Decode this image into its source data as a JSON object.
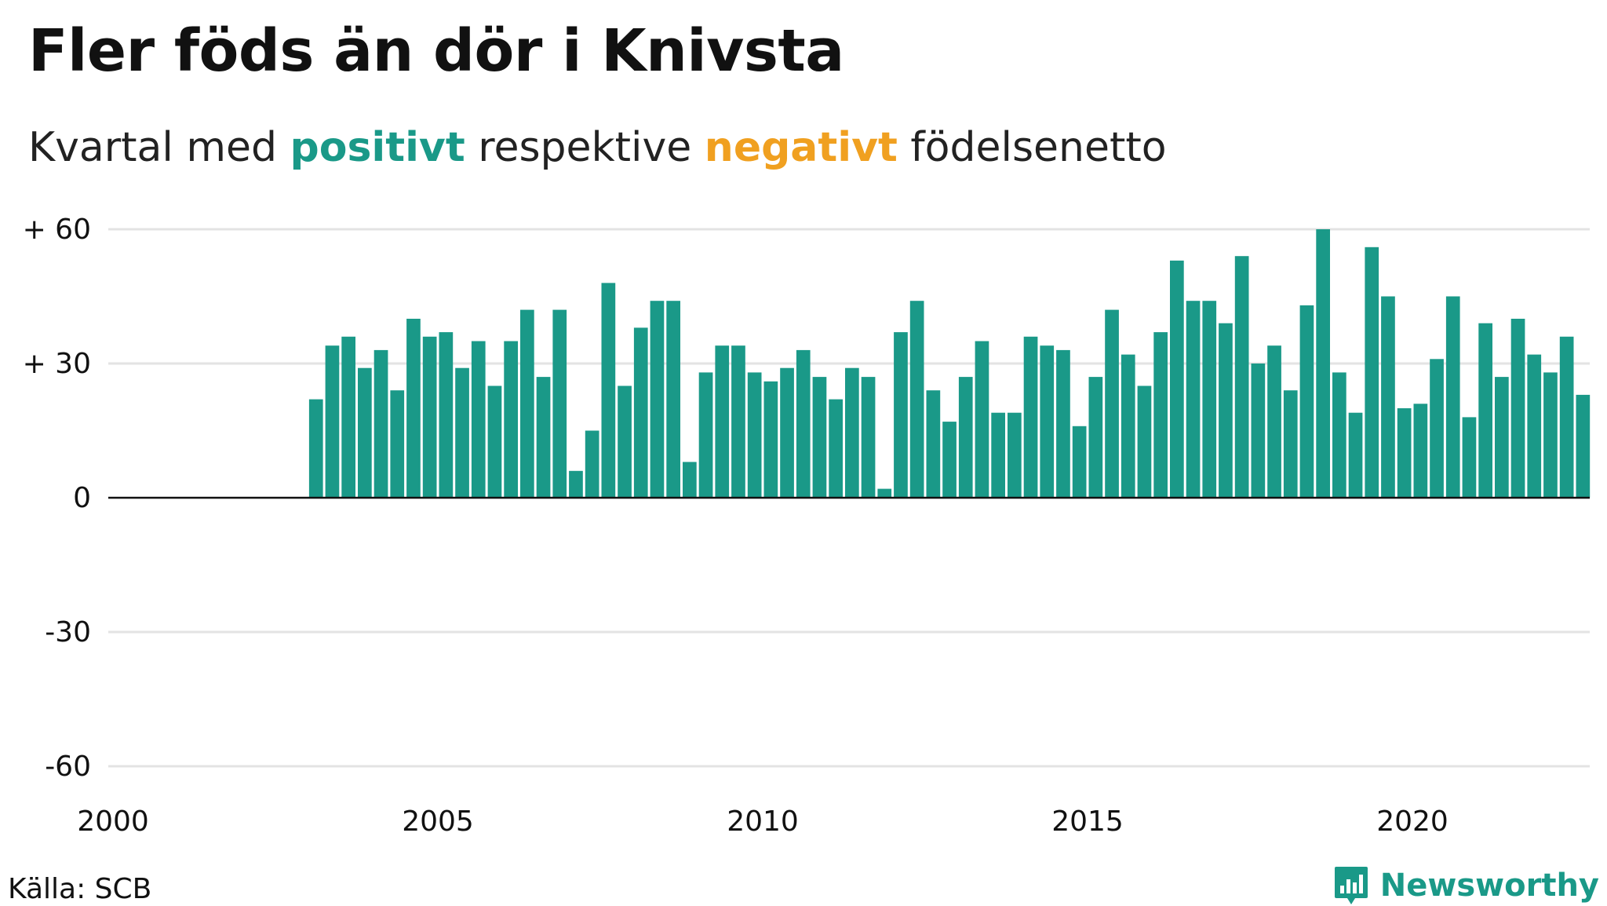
{
  "header": {
    "title": "Fler föds än dör i Knivsta",
    "subtitle_pre": "Kvartal med ",
    "subtitle_pos": "positivt",
    "subtitle_mid": " respektive ",
    "subtitle_neg": "negativt",
    "subtitle_post": " födelsenetto"
  },
  "footer": {
    "source": "Källa: SCB",
    "brand": "Newsworthy"
  },
  "colors": {
    "positive": "#1a9988",
    "negative": "#f0a020",
    "grid": "#e3e3e3",
    "axis": "#111111"
  },
  "chart_data": {
    "type": "bar",
    "title": "Fler föds än dör i Knivsta",
    "subtitle": "Kvartal med positivt respektive negativt födelsenetto",
    "xlabel": "",
    "ylabel": "",
    "x_start_quarter": "2003 Q1",
    "frequency": "quarterly",
    "xlim": [
      2000,
      2023
    ],
    "ylim": [
      -60,
      60
    ],
    "yticks": [
      60,
      30,
      0,
      -30,
      -60
    ],
    "ytick_labels": [
      "+ 60",
      "+ 30",
      "0",
      "-30",
      "-60"
    ],
    "xticks": [
      2000,
      2005,
      2010,
      2015,
      2020
    ],
    "xtick_labels": [
      "2000",
      "2005",
      "2010",
      "2015",
      "2020"
    ],
    "grid": true,
    "values": [
      22,
      34,
      36,
      29,
      33,
      24,
      40,
      36,
      37,
      29,
      35,
      25,
      35,
      42,
      27,
      42,
      6,
      15,
      48,
      25,
      38,
      44,
      44,
      8,
      28,
      34,
      34,
      28,
      26,
      29,
      33,
      27,
      22,
      29,
      27,
      2,
      37,
      44,
      24,
      17,
      27,
      35,
      19,
      19,
      36,
      34,
      33,
      16,
      27,
      42,
      32,
      25,
      37,
      53,
      44,
      44,
      39,
      54,
      30,
      34,
      24,
      43,
      60,
      28,
      19,
      56,
      45,
      20,
      21,
      31,
      45,
      18,
      39,
      27,
      40,
      32,
      28,
      36,
      23
    ]
  }
}
